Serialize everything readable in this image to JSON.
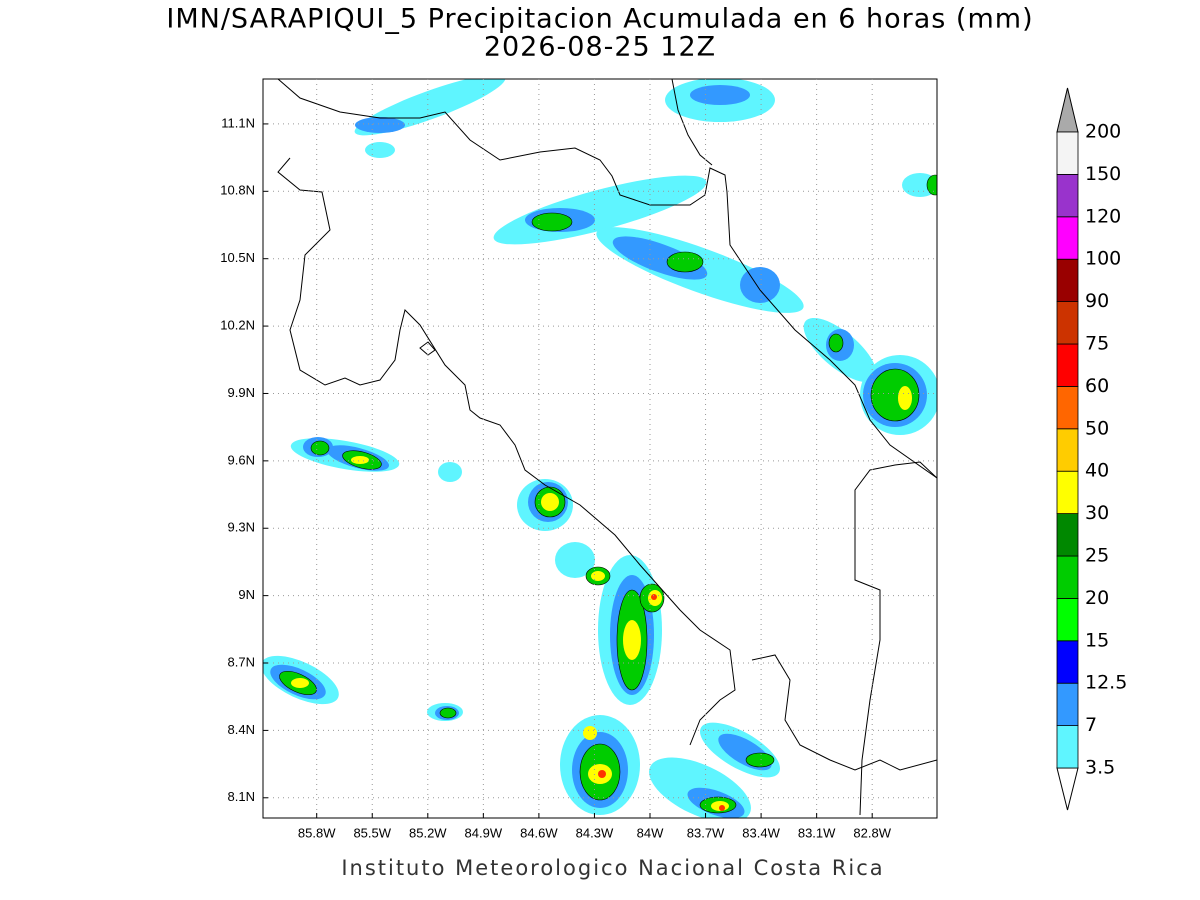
{
  "map": {
    "title": "IMN/SARAPIQUI_5 Precipitacion Acumulada en 6 horas (mm)",
    "subtitle": "2026-08-25 12Z",
    "footer": "Instituto Meteorologico Nacional Costa Rica",
    "lonlim": [
      -86.09,
      -82.45
    ],
    "latlim": [
      8.01,
      11.3
    ],
    "lonticks": [
      {
        "value": -85.8,
        "label": "85.8W"
      },
      {
        "value": -85.5,
        "label": "85.5W"
      },
      {
        "value": -85.2,
        "label": "85.2W"
      },
      {
        "value": -84.9,
        "label": "84.9W"
      },
      {
        "value": -84.6,
        "label": "84.6W"
      },
      {
        "value": -84.3,
        "label": "84.3W"
      },
      {
        "value": -84.0,
        "label": "84W"
      },
      {
        "value": -83.7,
        "label": "83.7W"
      },
      {
        "value": -83.4,
        "label": "83.4W"
      },
      {
        "value": -83.1,
        "label": "83.1W"
      },
      {
        "value": -82.8,
        "label": "82.8W"
      }
    ],
    "latticks": [
      {
        "value": 8.1,
        "label": "8.1N"
      },
      {
        "value": 8.4,
        "label": "8.4N"
      },
      {
        "value": 8.7,
        "label": "8.7N"
      },
      {
        "value": 9.0,
        "label": "9N"
      },
      {
        "value": 9.3,
        "label": "9.3N"
      },
      {
        "value": 9.6,
        "label": "9.6N"
      },
      {
        "value": 9.9,
        "label": "9.9N"
      },
      {
        "value": 10.2,
        "label": "10.2N"
      },
      {
        "value": 10.5,
        "label": "10.5N"
      },
      {
        "value": 10.8,
        "label": "10.8N"
      },
      {
        "value": 11.1,
        "label": "11.1N"
      }
    ],
    "colorbar": {
      "levels": [
        3.5,
        7,
        12.5,
        15,
        20,
        25,
        30,
        40,
        50,
        60,
        75,
        90,
        100,
        120,
        150,
        200
      ],
      "colors": [
        "#5ff5ff",
        "#3399ff",
        "#0000ff",
        "#00ff00",
        "#00cc00",
        "#008800",
        "#ffff00",
        "#ffcc00",
        "#ff6600",
        "#ff0000",
        "#cc3300",
        "#990000",
        "#ff00ff",
        "#9933cc",
        "#f4f4f4"
      ]
    }
  }
}
